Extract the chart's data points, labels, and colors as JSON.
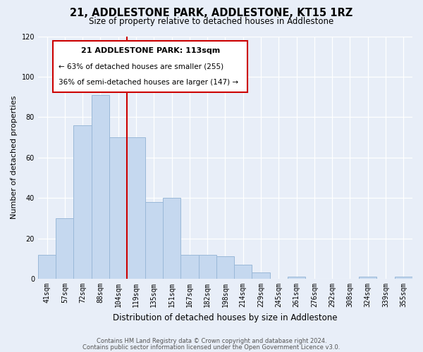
{
  "title": "21, ADDLESTONE PARK, ADDLESTONE, KT15 1RZ",
  "subtitle": "Size of property relative to detached houses in Addlestone",
  "xlabel": "Distribution of detached houses by size in Addlestone",
  "ylabel": "Number of detached properties",
  "categories": [
    "41sqm",
    "57sqm",
    "72sqm",
    "88sqm",
    "104sqm",
    "119sqm",
    "135sqm",
    "151sqm",
    "167sqm",
    "182sqm",
    "198sqm",
    "214sqm",
    "229sqm",
    "245sqm",
    "261sqm",
    "276sqm",
    "292sqm",
    "308sqm",
    "324sqm",
    "339sqm",
    "355sqm"
  ],
  "values": [
    12,
    30,
    76,
    91,
    70,
    70,
    38,
    40,
    12,
    12,
    11,
    7,
    3,
    0,
    1,
    0,
    0,
    0,
    1,
    0,
    1
  ],
  "bar_color": "#c5d8ef",
  "bar_edge_color": "#9ab8d8",
  "reference_line_x": 4.5,
  "reference_line_color": "#cc0000",
  "annotation_title": "21 ADDLESTONE PARK: 113sqm",
  "annotation_line1": "← 63% of detached houses are smaller (255)",
  "annotation_line2": "36% of semi-detached houses are larger (147) →",
  "annotation_box_color": "#ffffff",
  "annotation_box_edge_color": "#cc0000",
  "ylim": [
    0,
    120
  ],
  "footer_line1": "Contains HM Land Registry data © Crown copyright and database right 2024.",
  "footer_line2": "Contains public sector information licensed under the Open Government Licence v3.0.",
  "background_color": "#e8eef8"
}
